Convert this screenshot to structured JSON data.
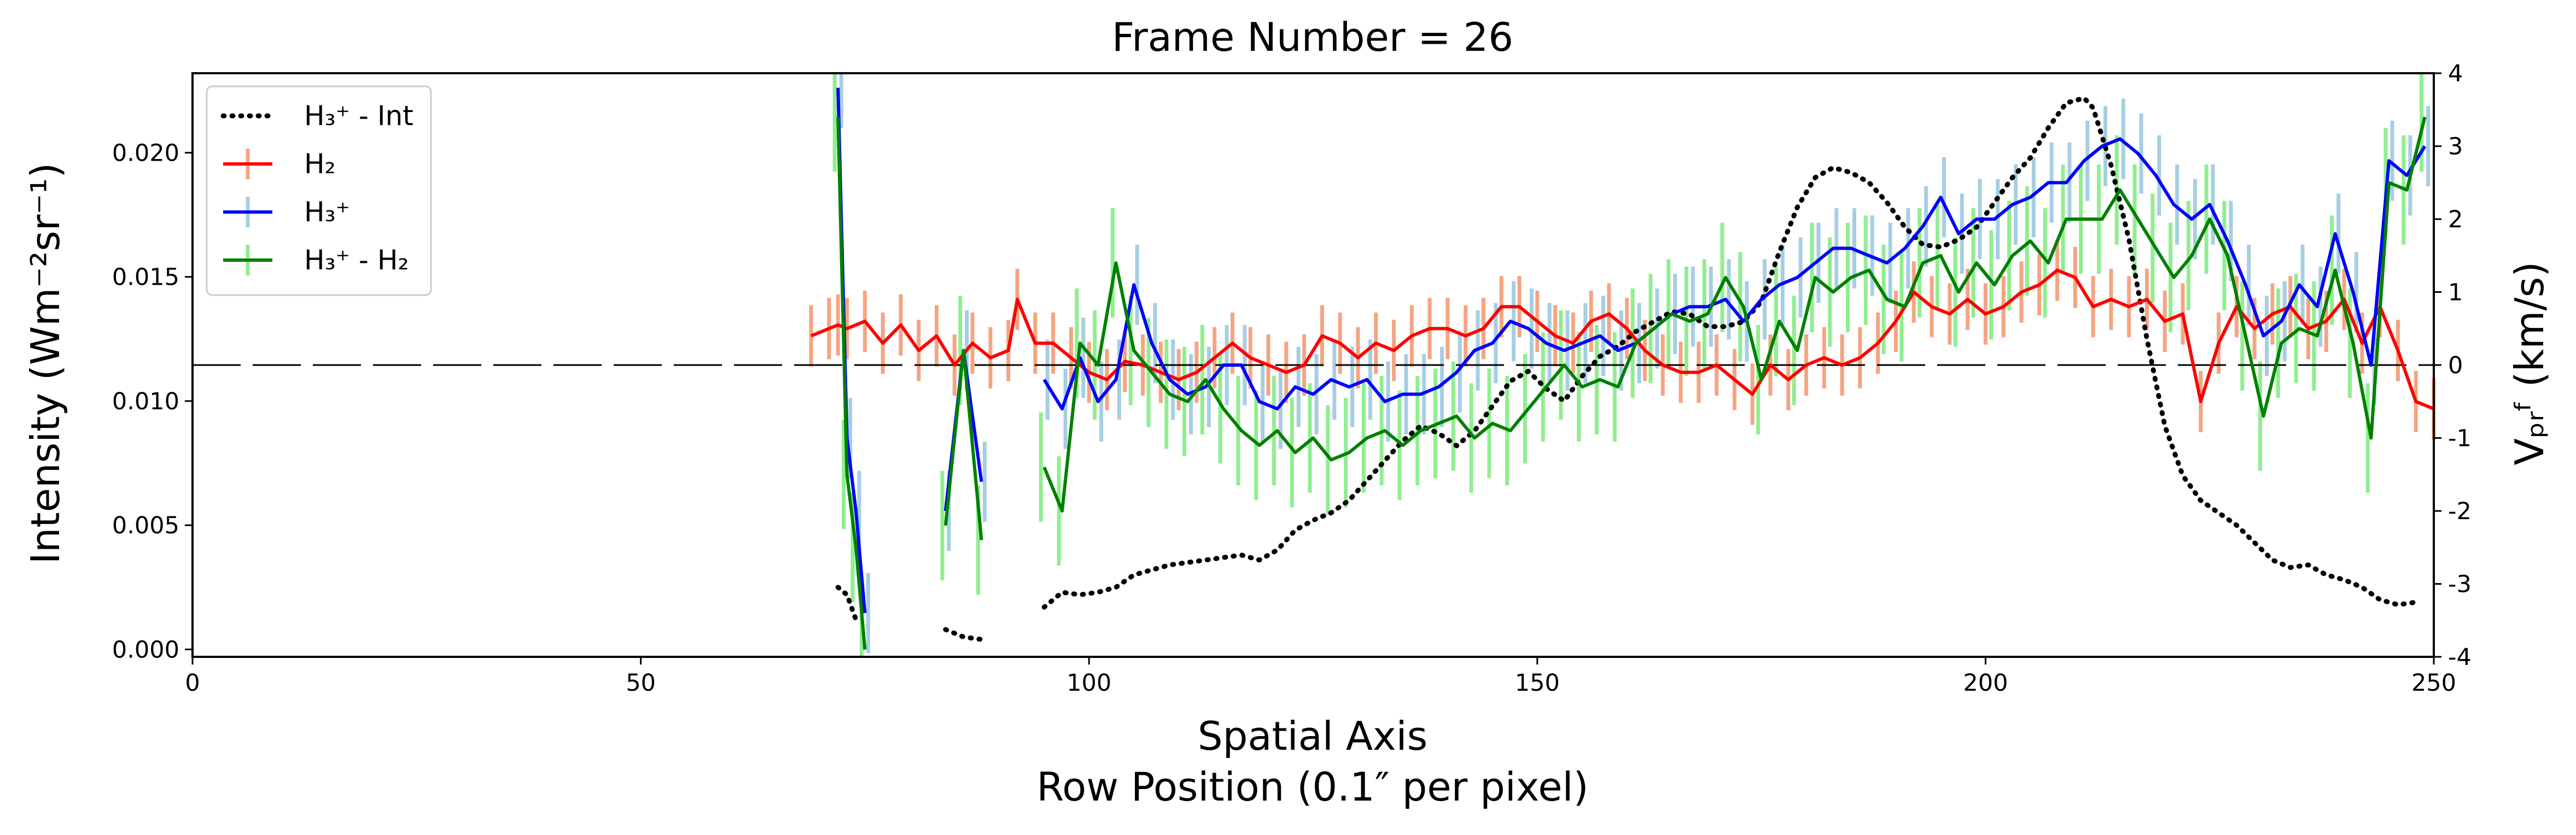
{
  "chart_data": {
    "type": "line",
    "title": "Frame Number = 26",
    "xlabel": "Spatial Axis",
    "xlabel2": "Row Position (0.1″ per pixel)",
    "ylabel_left": "Intensity (Wm⁻²sr⁻¹)",
    "ylabel_right": "Vₚᵣᶠ (km/s)",
    "xlim": [
      0,
      250
    ],
    "ylim_left": [
      -0.0003,
      0.0232
    ],
    "ylim_right": [
      -4,
      4
    ],
    "x_ticks": [
      "0",
      "50",
      "100",
      "150",
      "200",
      "250"
    ],
    "y_ticks_left": [
      "0.000",
      "0.005",
      "0.010",
      "0.015",
      "0.020"
    ],
    "y_ticks_right": [
      "-4",
      "-3",
      "-2",
      "-1",
      "0",
      "1",
      "2",
      "3",
      "4"
    ],
    "zero_line_right": 0,
    "legend_position": "upper-left",
    "legend": [
      {
        "label": "H₃⁺ - Int",
        "color": "#000000",
        "style": "dotted"
      },
      {
        "label": "H₂",
        "color": "#ff0000",
        "style": "solid-errorbar"
      },
      {
        "label": "H₃⁺",
        "color": "#0000ff",
        "style": "solid-errorbar"
      },
      {
        "label": "H₃⁺ - H₂",
        "color": "#008000",
        "style": "solid-errorbar"
      }
    ],
    "series": [
      {
        "name": "H₃⁺ - Int",
        "axis": "left",
        "color": "#000000",
        "style": "dotted",
        "segments": [
          {
            "x": [
              72,
              73,
              74
            ],
            "y": [
              0.0025,
              0.0022,
              0.0012
            ]
          },
          {
            "x": [
              84,
              86,
              88
            ],
            "y": [
              0.0008,
              0.0005,
              0.0004
            ]
          },
          {
            "x": [
              95,
              97,
              99,
              101,
              103,
              105,
              107,
              109,
              111,
              113,
              115,
              117,
              119,
              121,
              123,
              125,
              127,
              129,
              131,
              133,
              135,
              137,
              139,
              141,
              143,
              145,
              147,
              149,
              151,
              153,
              155,
              157,
              159,
              161,
              163,
              165,
              167,
              169,
              171,
              173,
              175,
              177,
              179,
              181,
              183,
              185,
              187,
              189,
              191,
              193,
              195,
              197,
              199,
              201,
              203,
              205,
              207,
              209,
              211,
              212,
              214,
              216,
              218,
              220,
              222,
              224,
              226,
              228,
              230,
              232,
              234,
              236,
              238,
              240,
              242,
              244,
              246,
              248
            ],
            "y": [
              0.0017,
              0.0023,
              0.0022,
              0.0023,
              0.0025,
              0.003,
              0.0032,
              0.0034,
              0.0035,
              0.0036,
              0.0037,
              0.0038,
              0.0036,
              0.004,
              0.0048,
              0.0052,
              0.0055,
              0.006,
              0.0068,
              0.0076,
              0.0084,
              0.009,
              0.0087,
              0.0082,
              0.0088,
              0.0098,
              0.0108,
              0.0112,
              0.0105,
              0.01,
              0.011,
              0.0118,
              0.0122,
              0.0128,
              0.0132,
              0.0136,
              0.0135,
              0.013,
              0.013,
              0.0132,
              0.014,
              0.016,
              0.0178,
              0.019,
              0.0194,
              0.0192,
              0.0188,
              0.018,
              0.017,
              0.0163,
              0.0162,
              0.0165,
              0.017,
              0.018,
              0.019,
              0.0198,
              0.021,
              0.022,
              0.0222,
              0.0218,
              0.0195,
              0.0165,
              0.0125,
              0.009,
              0.007,
              0.006,
              0.0055,
              0.005,
              0.0043,
              0.0036,
              0.0033,
              0.0034,
              0.003,
              0.0028,
              0.0025,
              0.002,
              0.0018,
              0.0019
            ]
          }
        ]
      },
      {
        "name": "H₂",
        "axis": "right",
        "color": "#ff0000",
        "errcolor": "#f4a582",
        "segments": [
          {
            "x": [
              69,
              71,
              72,
              73,
              75,
              77,
              79,
              81,
              83,
              85,
              87,
              89,
              91,
              92,
              94,
              96,
              98,
              100,
              102,
              104,
              106,
              108,
              110,
              112,
              114,
              116,
              118,
              120,
              122,
              124,
              126,
              128,
              130,
              132,
              134,
              136,
              138,
              140,
              142,
              144,
              146,
              148,
              150,
              152,
              154,
              156,
              158,
              160,
              162,
              164,
              166,
              168,
              170,
              172,
              174,
              176,
              178,
              180,
              182,
              184,
              186,
              188,
              190,
              192,
              194,
              196,
              198,
              200,
              202,
              204,
              206,
              208,
              210,
              212,
              214,
              216,
              218,
              220,
              222,
              224,
              226,
              228,
              230,
              232,
              234,
              236,
              238,
              240,
              242,
              244,
              246,
              248,
              250
            ],
            "y": [
              0.4,
              0.5,
              0.55,
              0.5,
              0.6,
              0.3,
              0.55,
              0.2,
              0.4,
              0.0,
              0.3,
              0.1,
              0.2,
              0.9,
              0.3,
              0.3,
              0.1,
              -0.1,
              -0.2,
              0.05,
              0.0,
              -0.1,
              -0.2,
              -0.1,
              0.1,
              0.3,
              0.1,
              0.0,
              -0.1,
              0.0,
              0.4,
              0.3,
              0.1,
              0.3,
              0.2,
              0.4,
              0.5,
              0.5,
              0.4,
              0.5,
              0.8,
              0.8,
              0.6,
              0.4,
              0.3,
              0.6,
              0.7,
              0.5,
              0.2,
              0.0,
              -0.1,
              -0.1,
              0.0,
              -0.2,
              -0.4,
              0.0,
              -0.2,
              0.0,
              0.1,
              0.0,
              0.1,
              0.3,
              0.6,
              1.0,
              0.8,
              0.7,
              0.9,
              0.7,
              0.8,
              1.0,
              1.1,
              1.3,
              1.2,
              0.8,
              0.9,
              0.8,
              0.9,
              0.6,
              0.7,
              -0.5,
              0.3,
              0.8,
              0.5,
              0.7,
              0.8,
              0.5,
              0.6,
              0.9,
              0.3,
              0.8,
              0.2,
              -0.5,
              -0.6
            ]
          }
        ]
      },
      {
        "name": "H₃⁺",
        "axis": "right",
        "color": "#0000ff",
        "errcolor": "#a6cee3",
        "segments": [
          {
            "x": [
              72,
              73,
              74,
              75
            ],
            "y": [
              3.8,
              -1.0,
              -2.0,
              -3.4
            ]
          },
          {
            "x": [
              84,
              86,
              88
            ],
            "y": [
              -2.0,
              0.2,
              -1.6
            ]
          },
          {
            "x": [
              95,
              97,
              99,
              101,
              103,
              105,
              107,
              109,
              111,
              113,
              115,
              117,
              119,
              121,
              123,
              125,
              127,
              129,
              131,
              133,
              135,
              137,
              139,
              141,
              143,
              145,
              147,
              149,
              151,
              153,
              155,
              157,
              159,
              161,
              163,
              165,
              167,
              169,
              171,
              173,
              175,
              177,
              179,
              181,
              183,
              185,
              187,
              189,
              191,
              193,
              195,
              197,
              199,
              201,
              203,
              205,
              207,
              209,
              211,
              213,
              215,
              217,
              219,
              221,
              223,
              225,
              227,
              229,
              231,
              233,
              235,
              237,
              239,
              241,
              243,
              245,
              247,
              249
            ],
            "y": [
              -0.2,
              -0.6,
              0.1,
              -0.5,
              -0.2,
              1.1,
              0.3,
              -0.2,
              -0.4,
              -0.3,
              0.0,
              0.0,
              -0.5,
              -0.6,
              -0.3,
              -0.4,
              -0.2,
              -0.3,
              -0.2,
              -0.5,
              -0.4,
              -0.4,
              -0.3,
              -0.1,
              0.2,
              0.3,
              0.6,
              0.5,
              0.3,
              0.2,
              0.3,
              0.4,
              0.2,
              0.3,
              0.5,
              0.7,
              0.8,
              0.8,
              0.9,
              0.6,
              0.9,
              1.1,
              1.2,
              1.4,
              1.6,
              1.6,
              1.5,
              1.4,
              1.6,
              1.9,
              2.3,
              1.8,
              2.0,
              2.0,
              2.2,
              2.3,
              2.5,
              2.5,
              2.8,
              3.0,
              3.1,
              2.9,
              2.6,
              2.2,
              2.0,
              2.2,
              1.7,
              1.1,
              0.4,
              0.6,
              1.1,
              0.8,
              1.8,
              1.0,
              0.0,
              2.8,
              2.6,
              3.0
            ]
          }
        ]
      },
      {
        "name": "H₃⁺ - H₂",
        "axis": "right",
        "color": "#008000",
        "errcolor": "#90ee90",
        "segments": [
          {
            "x": [
              72,
              73,
              74,
              75
            ],
            "y": [
              3.4,
              -1.5,
              -2.5,
              -3.9
            ]
          },
          {
            "x": [
              84,
              86,
              88
            ],
            "y": [
              -2.2,
              0.2,
              -2.4
            ]
          },
          {
            "x": [
              95,
              97,
              99,
              101,
              103,
              105,
              107,
              109,
              111,
              113,
              115,
              117,
              119,
              121,
              123,
              125,
              127,
              129,
              131,
              133,
              135,
              137,
              139,
              141,
              143,
              145,
              147,
              149,
              151,
              153,
              155,
              157,
              159,
              161,
              163,
              165,
              167,
              169,
              171,
              173,
              175,
              177,
              179,
              181,
              183,
              185,
              187,
              189,
              191,
              193,
              195,
              197,
              199,
              201,
              203,
              205,
              207,
              209,
              211,
              213,
              215,
              217,
              219,
              221,
              223,
              225,
              227,
              229,
              231,
              233,
              235,
              237,
              239,
              241,
              243,
              245,
              247,
              249
            ],
            "y": [
              -1.4,
              -2.0,
              0.3,
              0.0,
              1.4,
              0.2,
              -0.1,
              -0.4,
              -0.5,
              -0.2,
              -0.6,
              -0.9,
              -1.1,
              -0.9,
              -1.2,
              -1.0,
              -1.3,
              -1.2,
              -1.0,
              -0.9,
              -1.1,
              -0.9,
              -0.8,
              -0.7,
              -1.0,
              -0.8,
              -0.9,
              -0.6,
              -0.3,
              0.0,
              -0.3,
              -0.2,
              -0.3,
              0.3,
              0.5,
              0.7,
              0.6,
              0.7,
              1.2,
              0.8,
              -0.2,
              0.6,
              0.2,
              1.2,
              1.0,
              1.2,
              1.3,
              0.9,
              0.8,
              1.4,
              1.5,
              1.0,
              1.4,
              1.1,
              1.5,
              1.7,
              1.4,
              2.0,
              2.0,
              2.0,
              2.4,
              2.0,
              1.6,
              1.2,
              1.5,
              2.0,
              1.5,
              0.4,
              -0.7,
              0.3,
              0.5,
              0.4,
              1.3,
              0.3,
              -1.0,
              2.5,
              2.4,
              3.4
            ]
          }
        ]
      }
    ]
  }
}
